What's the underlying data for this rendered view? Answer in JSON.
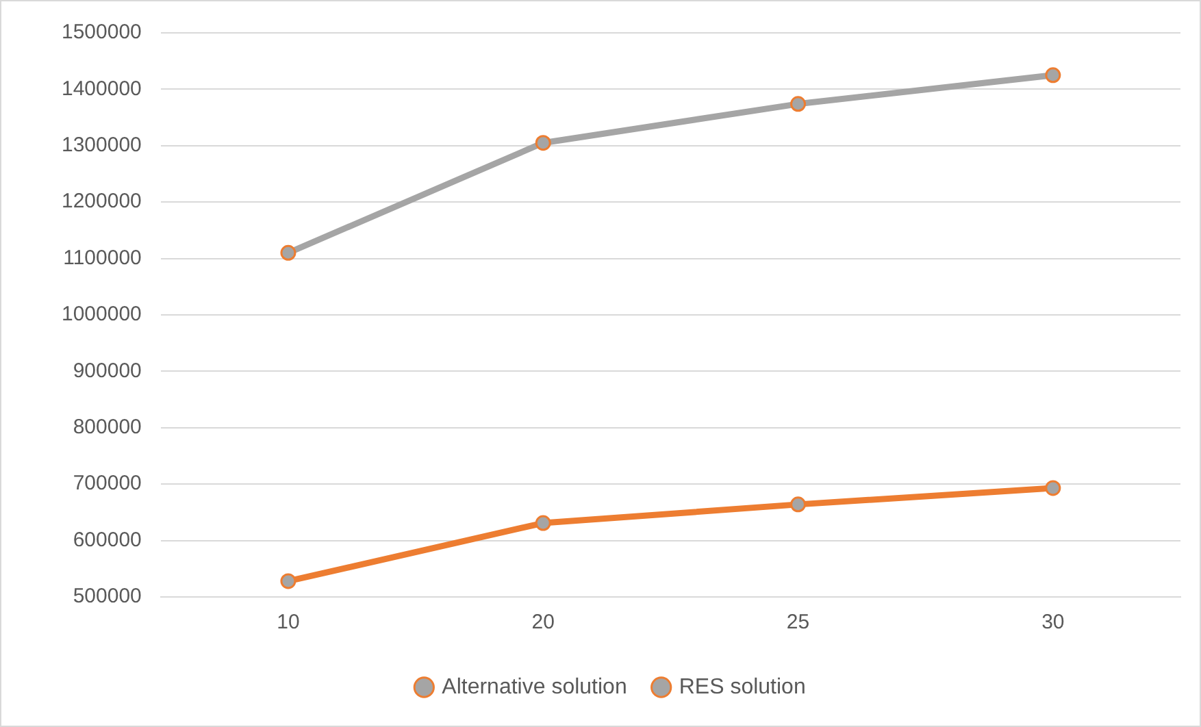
{
  "chart_data": {
    "type": "line",
    "categories": [
      "10",
      "20",
      "25",
      "30"
    ],
    "series": [
      {
        "name": "Alternative solution",
        "color": "#a5a5a5",
        "values": [
          1110000,
          1305000,
          1374000,
          1425000
        ]
      },
      {
        "name": "RES solution",
        "color": "#ed7d31",
        "values": [
          528000,
          631000,
          664000,
          693000
        ]
      }
    ],
    "ylim": [
      500000,
      1500000
    ],
    "yticks": [
      500000,
      600000,
      700000,
      800000,
      900000,
      1000000,
      1100000,
      1200000,
      1300000,
      1400000,
      1500000
    ],
    "grid": "y",
    "legend": "bottom",
    "marker": "circle"
  }
}
